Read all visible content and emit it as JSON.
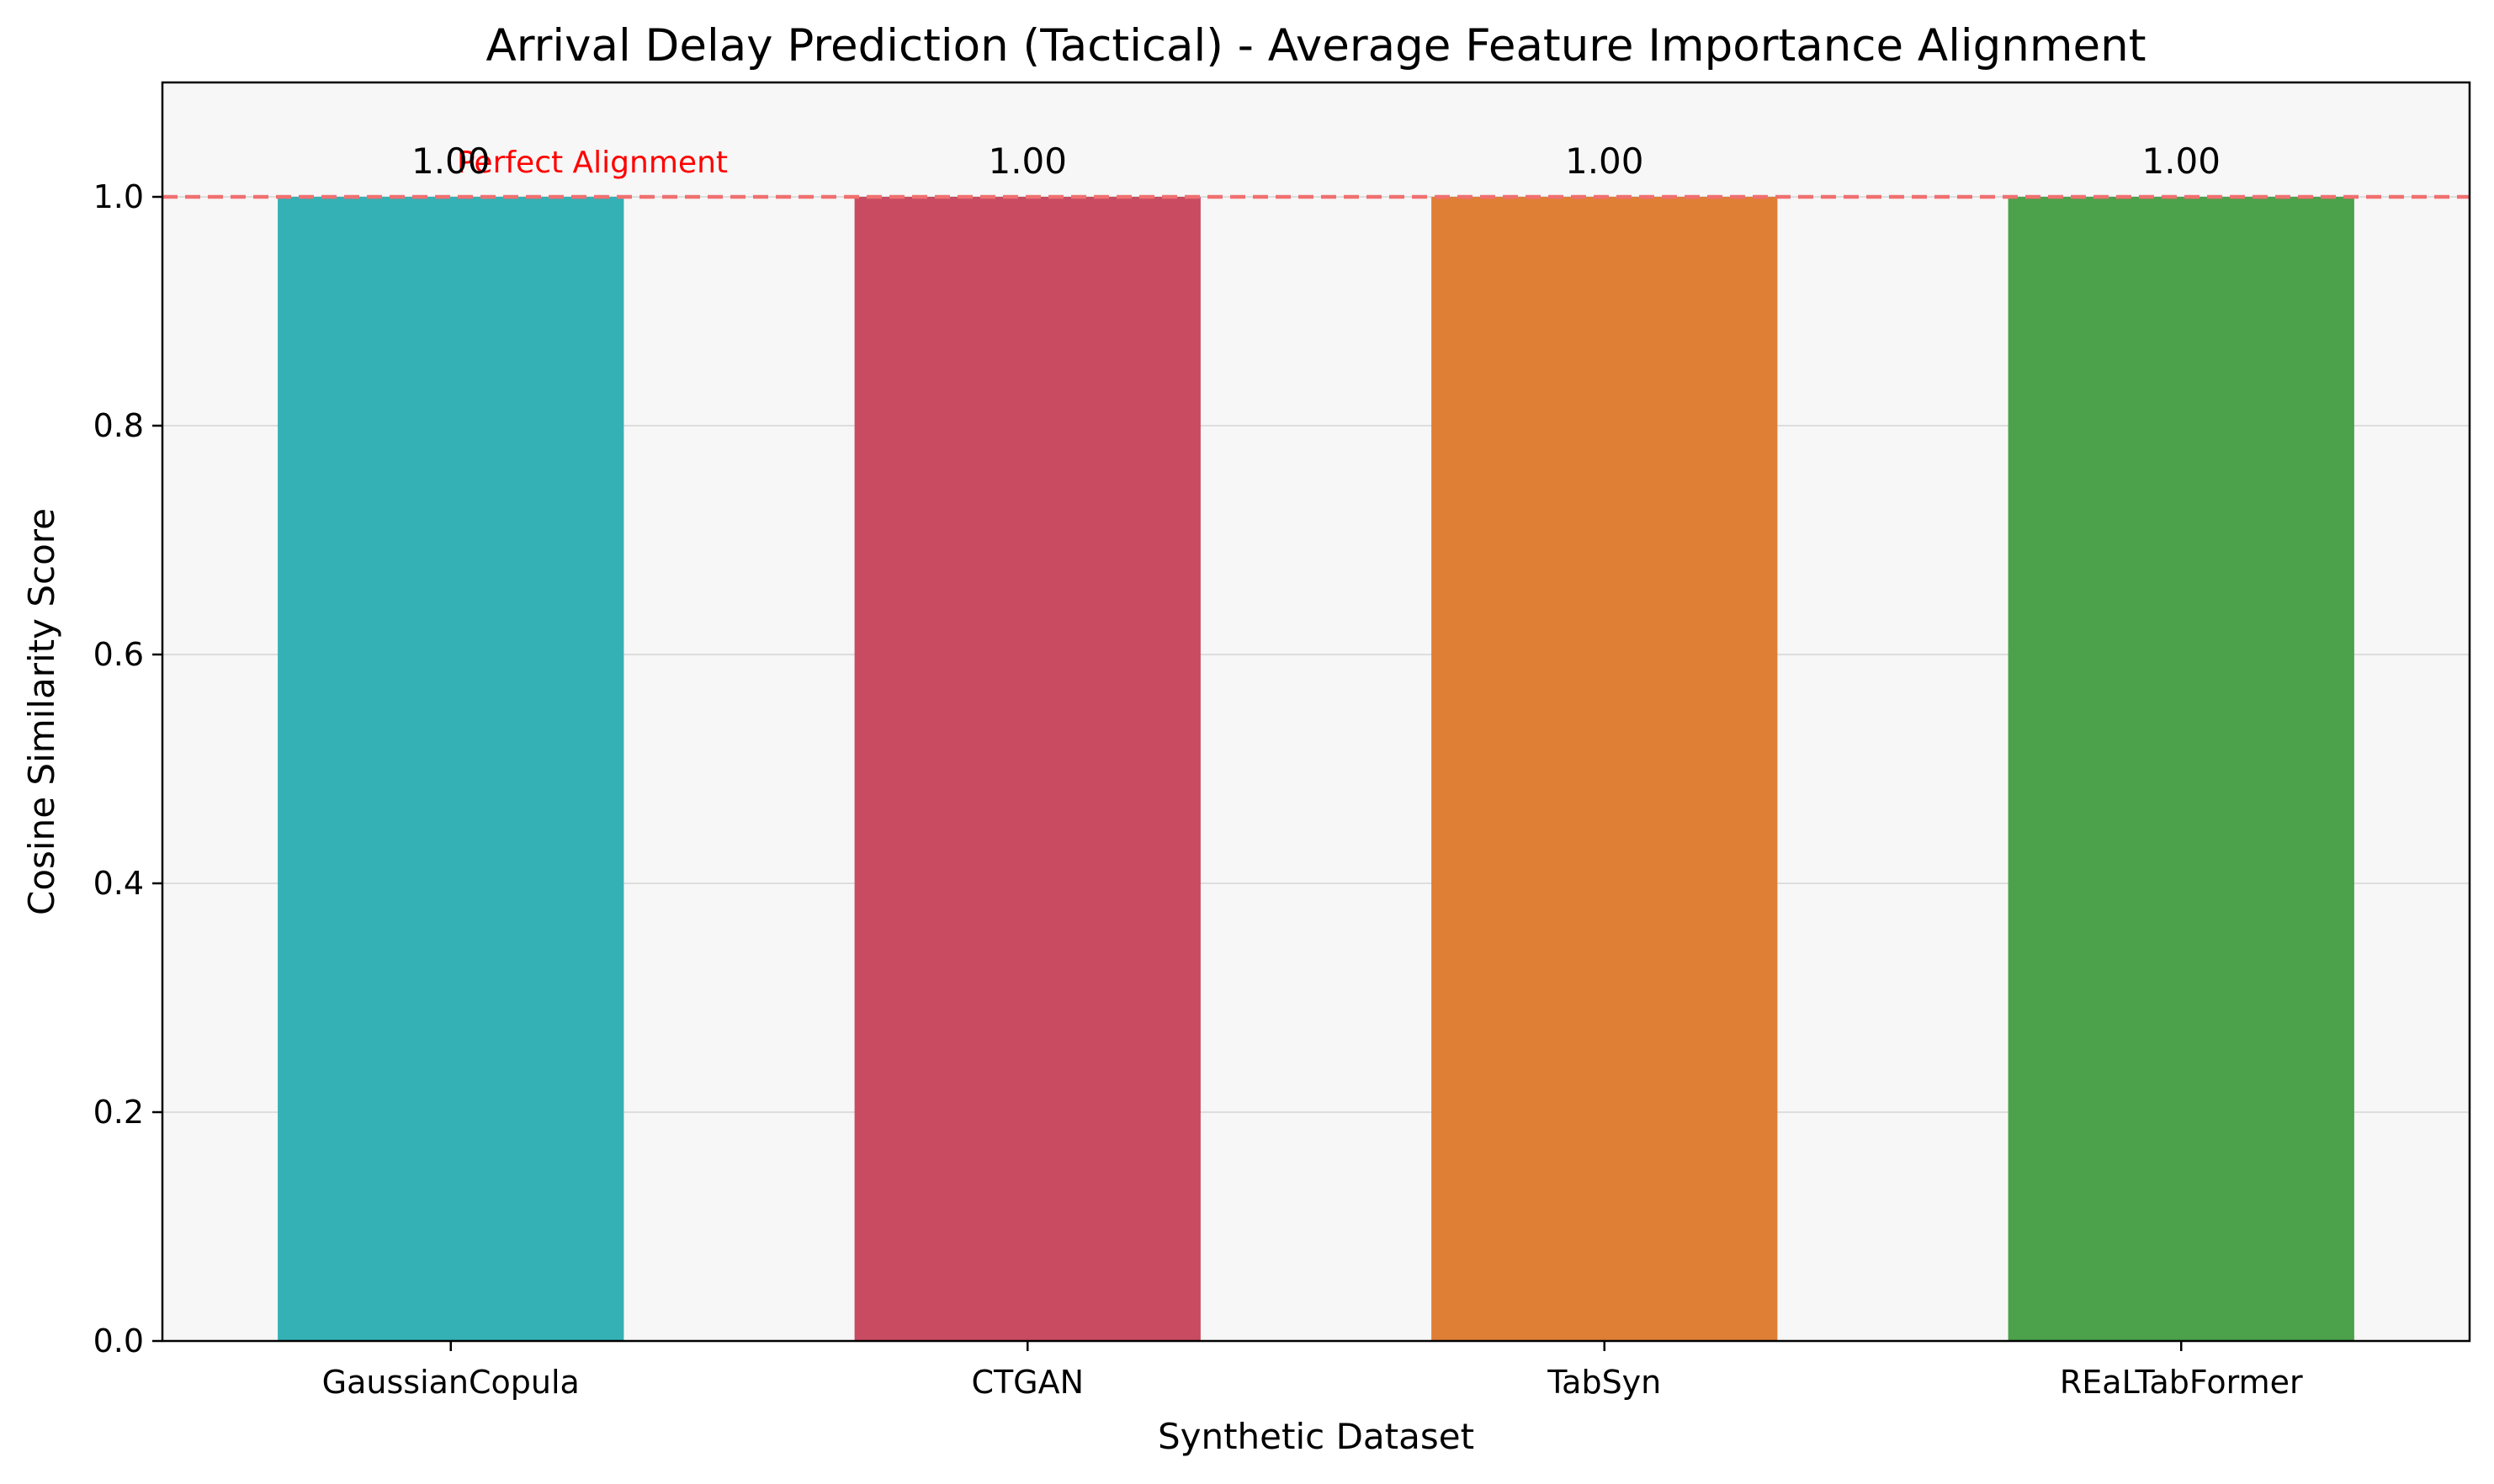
{
  "chart_data": {
    "type": "bar",
    "title": "Arrival Delay Prediction (Tactical) - Average Feature Importance Alignment",
    "xlabel": "Synthetic Dataset",
    "ylabel": "Cosine Similarity Score",
    "categories": [
      "GaussianCopula",
      "CTGAN",
      "TabSyn",
      "REaLTabFormer"
    ],
    "values": [
      1.0,
      1.0,
      1.0,
      1.0
    ],
    "data_labels": [
      "1.00",
      "1.00",
      "1.00",
      "1.00"
    ],
    "bar_colors": [
      "#34b1b5",
      "#c94b62",
      "#df7e35",
      "#4ca14b"
    ],
    "ylim": [
      0,
      1.1
    ],
    "yticks": [
      0.0,
      0.2,
      0.4,
      0.6,
      0.8,
      1.0
    ],
    "ytick_labels": [
      "0.0",
      "0.2",
      "0.4",
      "0.6",
      "0.8",
      "1.0"
    ],
    "grid": "horizontal",
    "reference_line": {
      "y": 1.0,
      "label": "Perfect Alignment",
      "color": "#f07070",
      "label_color": "#ff0000",
      "style": "dashed"
    },
    "plot_background": "#f7f7f7"
  }
}
